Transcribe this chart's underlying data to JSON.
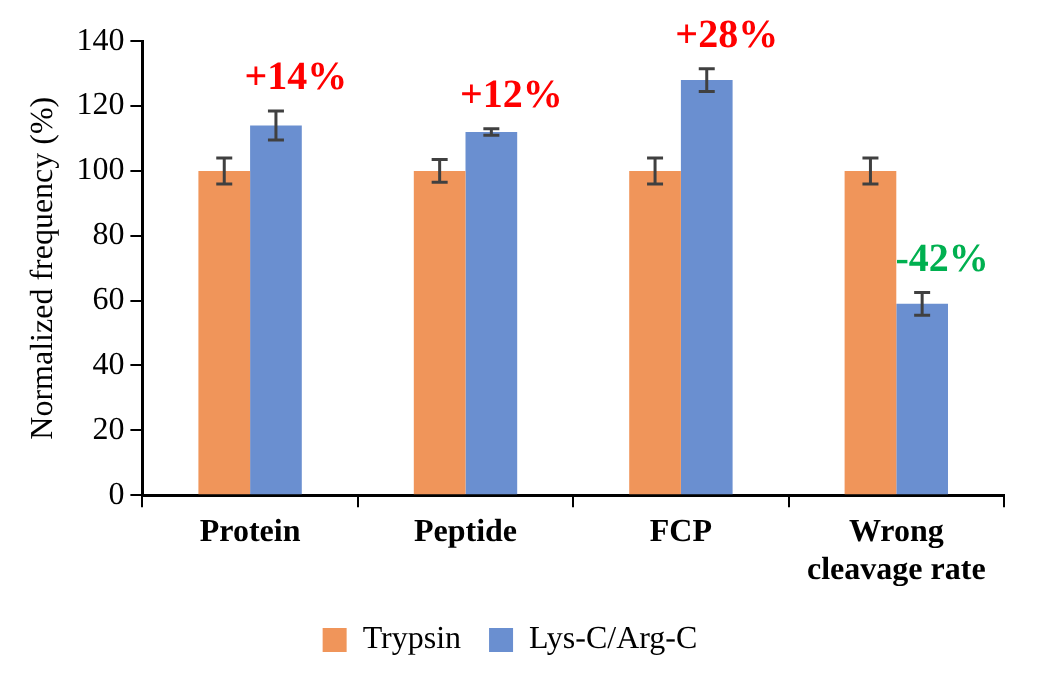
{
  "chart_data": {
    "type": "bar",
    "ylabel": "Normalized frequency (%)",
    "categories": [
      "Protein",
      "Peptide",
      "FCP",
      "Wrong cleavage rate"
    ],
    "series": [
      {
        "name": "Trypsin",
        "color": "#f0955a",
        "values": [
          100,
          100,
          100,
          100
        ],
        "errors": [
          4,
          3.5,
          4,
          4
        ]
      },
      {
        "name": "Lys-C/Arg-C",
        "color": "#6a8fd0",
        "values": [
          114,
          112,
          128,
          59
        ],
        "errors": [
          4.5,
          1,
          3.5,
          3.5
        ]
      }
    ],
    "annotations": [
      "+14%",
      "+12%",
      "+28%",
      "-42%"
    ],
    "ylim": [
      0,
      140
    ],
    "yticks": [
      0,
      20,
      40,
      60,
      80,
      100,
      120,
      140
    ],
    "grid": false,
    "legend": "bottom"
  }
}
